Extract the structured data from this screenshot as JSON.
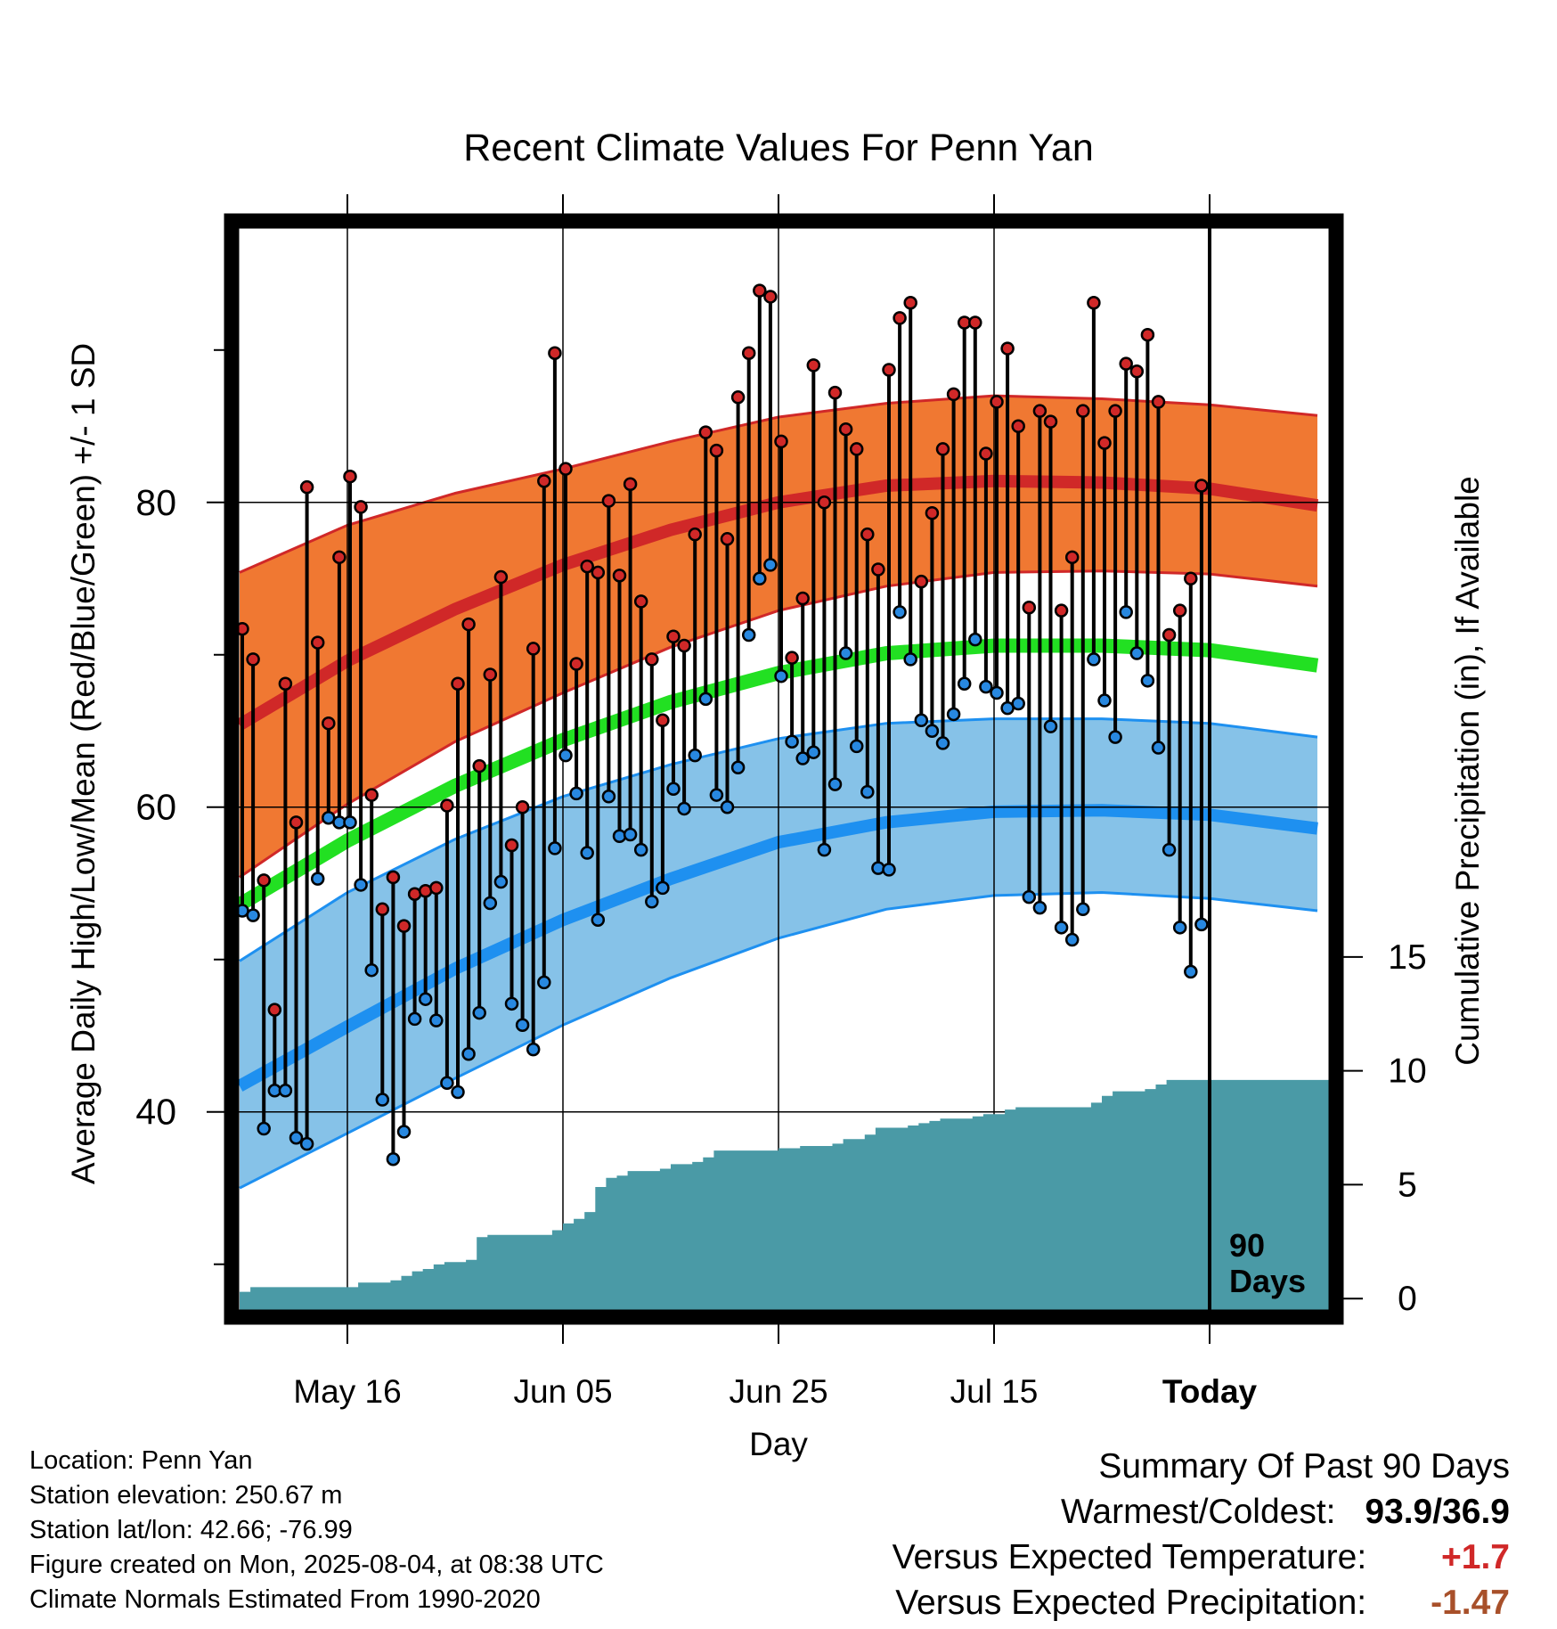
{
  "chart_data": {
    "type": "line",
    "title": "Recent Climate Values For Penn Yan",
    "xlabel": "Day",
    "ylabel": "Average Daily High/Low/Mean (Red/Blue/Green) +/- 1 SD",
    "y2label": "Cumulative Precipitation (in), If Available",
    "xlim": [
      0,
      100
    ],
    "ylim": [
      27,
      98
    ],
    "y2lim": [
      -0.5,
      47
    ],
    "x_ticks": [
      {
        "x": 10,
        "label": "May 16",
        "bold": false
      },
      {
        "x": 30,
        "label": "Jun 05",
        "bold": false
      },
      {
        "x": 50,
        "label": "Jun 25",
        "bold": false
      },
      {
        "x": 70,
        "label": "Jul 15",
        "bold": false
      },
      {
        "x": 90,
        "label": "Today",
        "bold": true
      }
    ],
    "y_ticks": [
      {
        "value": 40,
        "label": "40"
      },
      {
        "value": 60,
        "label": "60"
      },
      {
        "value": 80,
        "label": "80"
      }
    ],
    "y_minor_ticks": [
      30,
      50,
      70,
      90
    ],
    "y2_ticks": [
      {
        "value": 0,
        "label": "0"
      },
      {
        "value": 5,
        "label": "5"
      },
      {
        "value": 10,
        "label": "10"
      },
      {
        "value": 15,
        "label": "15"
      }
    ],
    "grid": true,
    "today_x": 90,
    "today_label": [
      "90",
      "Days"
    ],
    "normals": {
      "x": [
        0,
        10,
        20,
        30,
        40,
        50,
        60,
        70,
        80,
        90,
        100
      ],
      "high_mean": [
        65.4,
        69.6,
        73.0,
        75.9,
        78.2,
        80.0,
        81.1,
        81.4,
        81.3,
        80.9,
        79.8
      ],
      "high_upper": [
        75.4,
        78.5,
        80.6,
        82.2,
        84.0,
        85.6,
        86.5,
        87.0,
        86.8,
        86.4,
        85.7
      ],
      "high_lower": [
        55.4,
        60.2,
        64.3,
        67.5,
        70.5,
        72.9,
        74.5,
        75.4,
        75.5,
        75.3,
        74.5
      ],
      "mean": [
        53.6,
        57.8,
        61.4,
        64.4,
        66.9,
        68.8,
        70.1,
        70.6,
        70.6,
        70.3,
        69.3
      ],
      "low_mean": [
        41.7,
        45.6,
        49.4,
        52.6,
        55.3,
        57.7,
        59.0,
        59.7,
        59.8,
        59.5,
        58.6
      ],
      "low_upper": [
        49.9,
        54.4,
        57.9,
        60.7,
        62.8,
        64.5,
        65.5,
        65.8,
        65.8,
        65.5,
        64.6
      ],
      "low_lower": [
        35.0,
        38.6,
        42.2,
        45.7,
        48.8,
        51.4,
        53.3,
        54.2,
        54.4,
        54.0,
        53.2
      ]
    },
    "daily": {
      "x": [
        0,
        1,
        2,
        3,
        4,
        5,
        6,
        7,
        8,
        9,
        10,
        11,
        12,
        13,
        14,
        15,
        16,
        17,
        18,
        19,
        20,
        21,
        22,
        23,
        24,
        25,
        26,
        27,
        28,
        29,
        30,
        31,
        32,
        33,
        34,
        35,
        36,
        37,
        38,
        39,
        40,
        41,
        42,
        43,
        44,
        45,
        46,
        47,
        48,
        49,
        50,
        51,
        52,
        53,
        54,
        55,
        56,
        57,
        58,
        59,
        60,
        61,
        62,
        63,
        64,
        65,
        66,
        67,
        68,
        69,
        70,
        71,
        72,
        73,
        74,
        75,
        76,
        77,
        78,
        79,
        80,
        81,
        82,
        83,
        84,
        85,
        86,
        87,
        88,
        89
      ],
      "high": [
        71.7,
        69.7,
        55.2,
        46.7,
        68.1,
        59.0,
        81.0,
        70.8,
        65.5,
        76.4,
        81.7,
        79.7,
        60.8,
        53.3,
        55.4,
        52.2,
        54.3,
        54.5,
        54.7,
        60.1,
        68.1,
        72.0,
        62.7,
        68.7,
        75.1,
        57.5,
        60.0,
        70.4,
        81.4,
        89.8,
        82.2,
        69.4,
        75.8,
        75.4,
        80.1,
        75.2,
        81.2,
        73.5,
        69.7,
        65.7,
        71.2,
        70.6,
        77.9,
        84.6,
        83.4,
        77.6,
        86.9,
        89.8,
        93.9,
        93.5,
        84.0,
        69.8,
        73.7,
        89.0,
        80.0,
        87.2,
        84.8,
        83.5,
        77.9,
        75.6,
        88.7,
        92.1,
        93.1,
        74.8,
        79.3,
        83.5,
        87.1,
        91.8,
        91.8,
        83.2,
        86.6,
        90.1,
        85.0,
        73.1,
        86.0,
        85.3,
        72.9,
        76.4,
        86.0,
        93.1,
        83.9,
        86.0,
        89.1,
        88.6,
        91.0,
        86.6,
        71.3,
        72.9,
        75.0,
        81.1
      ],
      "low": [
        53.2,
        52.9,
        38.9,
        41.4,
        41.4,
        38.3,
        37.9,
        55.3,
        59.3,
        59.0,
        59.0,
        54.9,
        49.3,
        40.8,
        36.9,
        38.7,
        46.1,
        47.4,
        46.0,
        41.9,
        41.3,
        43.8,
        46.5,
        53.7,
        55.1,
        47.1,
        45.7,
        44.1,
        48.5,
        57.3,
        63.4,
        60.9,
        57.0,
        52.6,
        60.7,
        58.1,
        58.2,
        57.2,
        53.8,
        54.7,
        61.2,
        59.9,
        63.4,
        67.1,
        60.8,
        60.0,
        62.6,
        71.3,
        75.0,
        75.9,
        68.6,
        64.3,
        63.2,
        63.6,
        57.2,
        61.5,
        70.1,
        64.0,
        61.0,
        56.0,
        55.9,
        72.8,
        69.7,
        65.7,
        65.0,
        64.2,
        66.1,
        68.1,
        71.0,
        67.9,
        67.5,
        66.5,
        66.8,
        54.1,
        53.4,
        65.3,
        52.1,
        51.3,
        53.3,
        69.7,
        67.0,
        64.6,
        72.8,
        70.1,
        68.3,
        63.9,
        57.2,
        52.1,
        49.2,
        52.3
      ]
    },
    "precip_cumulative": {
      "x": [
        0,
        1,
        10,
        11,
        14,
        15,
        16,
        17,
        18,
        19,
        21,
        22,
        23,
        28,
        29,
        30,
        31,
        32,
        33,
        34,
        35,
        36,
        39,
        40,
        42,
        43,
        44,
        50,
        52,
        55,
        56,
        58,
        59,
        62,
        63,
        64,
        65,
        68,
        69,
        71,
        72,
        79,
        80,
        81,
        84,
        85,
        86,
        89,
        90,
        99
      ],
      "y": [
        0.3,
        0.5,
        0.5,
        0.7,
        0.8,
        1.0,
        1.2,
        1.3,
        1.5,
        1.6,
        1.7,
        2.7,
        2.8,
        2.8,
        3.0,
        3.3,
        3.5,
        3.8,
        4.9,
        5.3,
        5.4,
        5.6,
        5.7,
        5.9,
        6.0,
        6.2,
        6.5,
        6.6,
        6.7,
        6.8,
        7.0,
        7.2,
        7.5,
        7.6,
        7.7,
        7.8,
        7.9,
        8.0,
        8.1,
        8.3,
        8.4,
        8.6,
        8.9,
        9.1,
        9.2,
        9.4,
        9.6,
        9.6,
        9.6,
        9.6
      ]
    }
  },
  "info": {
    "location": "Location: Penn Yan",
    "elevation": "Station elevation: 250.67 m",
    "latlon": "Station lat/lon: 42.66; -76.99",
    "created": "Figure created on Mon, 2025-08-04, at 08:38 UTC",
    "normals": "Climate Normals Estimated From 1990-2020"
  },
  "summary": {
    "heading": "Summary Of Past 90 Days",
    "warmest_coldest_label": "Warmest/Coldest:",
    "warmest_coldest_value": "93.9/36.9",
    "temp_label": "Versus Expected Temperature:",
    "temp_value": "+1.7",
    "precip_label": "Versus Expected Precipitation:",
    "precip_value": "-1.47"
  },
  "colors": {
    "high_band": "#f07832",
    "high_line": "#d02828",
    "mean_line": "#22e022",
    "low_band": "#86c2e8",
    "low_line": "#1e90f0",
    "precip_fill": "#4a9aa6",
    "high_marker": "#d02828",
    "low_marker": "#2888e0",
    "warm_value": "#d02828",
    "dry_value": "#a8502a"
  }
}
